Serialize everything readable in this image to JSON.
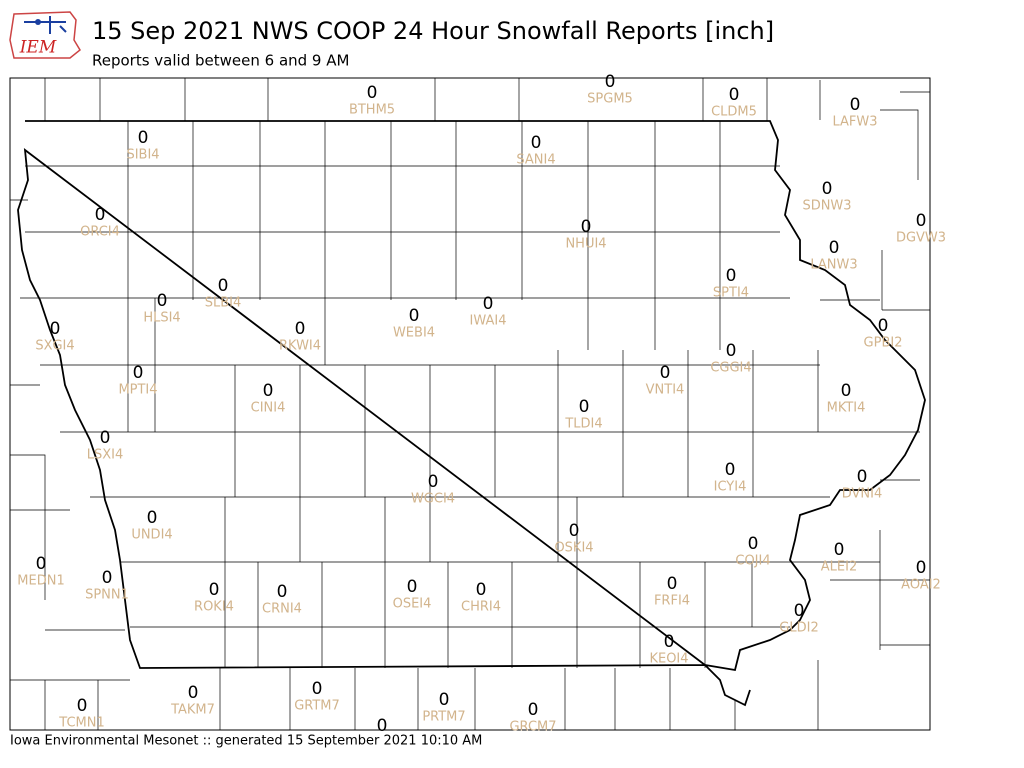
{
  "logo_text": "IEM",
  "title": "15 Sep 2021 NWS COOP 24 Hour Snowfall Reports [inch]",
  "subtitle": "Reports valid between 6 and 9 AM",
  "footer": "Iowa Environmental Mesonet :: generated 15 September 2021 10:10 AM",
  "stations": [
    {
      "id": "BTHM5",
      "value": 0
    },
    {
      "id": "SPGM5",
      "value": 0
    },
    {
      "id": "CLDM5",
      "value": 0
    },
    {
      "id": "LAFW3",
      "value": 0
    },
    {
      "id": "SIBI4",
      "value": 0
    },
    {
      "id": "SANI4",
      "value": 0
    },
    {
      "id": "SDNW3",
      "value": 0
    },
    {
      "id": "ORCI4",
      "value": 0
    },
    {
      "id": "NHUI4",
      "value": 0
    },
    {
      "id": "DGVW3",
      "value": 0
    },
    {
      "id": "LANW3",
      "value": 0
    },
    {
      "id": "SPTI4",
      "value": 0
    },
    {
      "id": "SLBI4",
      "value": 0
    },
    {
      "id": "HLSI4",
      "value": 0
    },
    {
      "id": "IWAI4",
      "value": 0
    },
    {
      "id": "WEBI4",
      "value": 0
    },
    {
      "id": "RKWI4",
      "value": 0
    },
    {
      "id": "SXGI4",
      "value": 0
    },
    {
      "id": "GPBI2",
      "value": 0
    },
    {
      "id": "CGGI4",
      "value": 0
    },
    {
      "id": "MPTI4",
      "value": 0
    },
    {
      "id": "VNTI4",
      "value": 0
    },
    {
      "id": "MKTI4",
      "value": 0
    },
    {
      "id": "CINI4",
      "value": 0
    },
    {
      "id": "TLDI4",
      "value": 0
    },
    {
      "id": "LSXI4",
      "value": 0
    },
    {
      "id": "ICYI4",
      "value": 0
    },
    {
      "id": "DVNI4",
      "value": 0
    },
    {
      "id": "WGCI4",
      "value": 0
    },
    {
      "id": "UNDI4",
      "value": 0
    },
    {
      "id": "OSKI4",
      "value": 0
    },
    {
      "id": "COJI4",
      "value": 0
    },
    {
      "id": "ALEI2",
      "value": 0
    },
    {
      "id": "MEDN1",
      "value": 0
    },
    {
      "id": "AOAI2",
      "value": 0
    },
    {
      "id": "SPNN1",
      "value": 0
    },
    {
      "id": "ROKI4",
      "value": 0
    },
    {
      "id": "CRNI4",
      "value": 0
    },
    {
      "id": "OSEI4",
      "value": 0
    },
    {
      "id": "CHRI4",
      "value": 0
    },
    {
      "id": "FRFI4",
      "value": 0
    },
    {
      "id": "GLDI2",
      "value": 0
    },
    {
      "id": "KEOI4",
      "value": 0
    },
    {
      "id": "TAKM7",
      "value": 0
    },
    {
      "id": "GRTM7",
      "value": 0
    },
    {
      "id": "PRTM7",
      "value": 0
    },
    {
      "id": "TCMN1",
      "value": 0
    },
    {
      "id": "GRCM7",
      "value": 0
    },
    {
      "id": null,
      "value": 0
    }
  ]
}
